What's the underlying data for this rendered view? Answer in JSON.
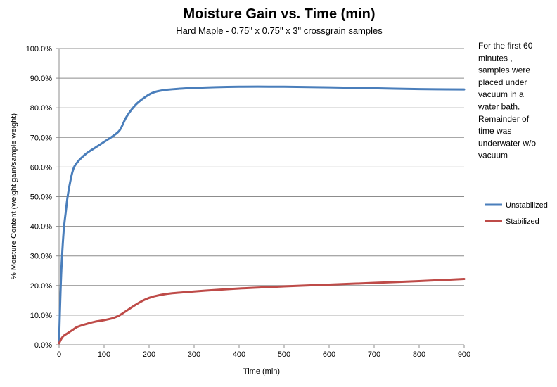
{
  "chart_data": {
    "type": "line",
    "title": "Moisture Gain vs. Time (min)",
    "subtitle": "Hard Maple - 0.75\" x 0.75\" x 3\" crossgrain samples",
    "xlabel": "Time (min)",
    "ylabel": "% Moisture Content (weight gain/sample weight)",
    "xlim": [
      0,
      900
    ],
    "ylim": [
      0,
      1
    ],
    "x_ticks": [
      0,
      100,
      200,
      300,
      400,
      500,
      600,
      700,
      800,
      900
    ],
    "x_tick_labels": [
      "0",
      "100",
      "200",
      "300",
      "400",
      "500",
      "600",
      "700",
      "800",
      "900"
    ],
    "y_ticks": [
      0,
      0.1,
      0.2,
      0.3,
      0.4,
      0.5,
      0.6,
      0.7,
      0.8,
      0.9,
      1.0
    ],
    "y_tick_labels": [
      "0.0%",
      "10.0%",
      "20.0%",
      "30.0%",
      "40.0%",
      "50.0%",
      "60.0%",
      "70.0%",
      "80.0%",
      "90.0%",
      "100.0%"
    ],
    "grid": "horizontal",
    "legend_position": "right",
    "series": [
      {
        "name": "Unstabilized",
        "color": "#4a7ebb",
        "x": [
          0,
          2,
          5,
          10,
          15,
          20,
          30,
          40,
          60,
          80,
          100,
          120,
          135,
          150,
          170,
          190,
          210,
          240,
          300,
          400,
          500,
          600,
          700,
          800,
          900
        ],
        "y": [
          0.01,
          0.12,
          0.25,
          0.38,
          0.45,
          0.51,
          0.585,
          0.615,
          0.645,
          0.665,
          0.685,
          0.705,
          0.725,
          0.77,
          0.81,
          0.835,
          0.852,
          0.861,
          0.867,
          0.871,
          0.871,
          0.869,
          0.866,
          0.863,
          0.862
        ]
      },
      {
        "name": "Stabilized",
        "color": "#be4b48",
        "x": [
          0,
          5,
          10,
          20,
          30,
          40,
          60,
          80,
          100,
          120,
          135,
          150,
          170,
          190,
          210,
          240,
          300,
          400,
          500,
          600,
          700,
          800,
          900
        ],
        "y": [
          0.005,
          0.02,
          0.03,
          0.04,
          0.05,
          0.06,
          0.07,
          0.078,
          0.083,
          0.09,
          0.1,
          0.115,
          0.135,
          0.152,
          0.163,
          0.172,
          0.18,
          0.19,
          0.197,
          0.203,
          0.209,
          0.215,
          0.222
        ]
      }
    ],
    "annotation": [
      "For the first 60",
      "minutes ,",
      "samples were",
      "placed under",
      "vacuum in a",
      "water bath.",
      "Remainder of",
      "time was",
      "underwater w/o",
      "vacuum"
    ]
  }
}
